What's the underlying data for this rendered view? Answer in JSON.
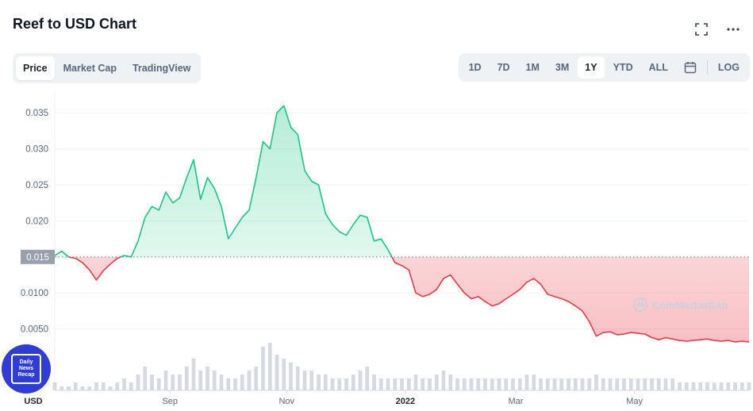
{
  "header": {
    "title": "Reef to USD Chart"
  },
  "tabs_left": [
    {
      "label": "Price",
      "active": true
    },
    {
      "label": "Market Cap",
      "active": false
    },
    {
      "label": "TradingView",
      "active": false
    }
  ],
  "tabs_right": [
    {
      "label": "1D",
      "active": false
    },
    {
      "label": "7D",
      "active": false
    },
    {
      "label": "1M",
      "active": false
    },
    {
      "label": "3M",
      "active": false
    },
    {
      "label": "1Y",
      "active": true
    },
    {
      "label": "YTD",
      "active": false
    },
    {
      "label": "ALL",
      "active": false
    }
  ],
  "log_label": "LOG",
  "icons": {
    "fullscreen": "fullscreen-icon",
    "more": "more-icon",
    "calendar": "calendar-icon"
  },
  "badge": {
    "line1": "Daily",
    "line2": "News",
    "line3": "Recap"
  },
  "watermark": "CoinMarketCap",
  "colors": {
    "up": "#16c784",
    "down": "#ea3943",
    "baseline_label_bg": "#9aa0ab"
  },
  "chart_data": {
    "type": "line",
    "currency_label": "USD",
    "baseline": 0.015,
    "baseline_label": "0.015",
    "ylim": [
      0.0,
      0.038
    ],
    "yticks": [
      {
        "value": 0.005,
        "label": "0.0050"
      },
      {
        "value": 0.01,
        "label": "0.0100"
      },
      {
        "value": 0.02,
        "label": "0.020"
      },
      {
        "value": 0.025,
        "label": "0.025"
      },
      {
        "value": 0.03,
        "label": "0.030"
      },
      {
        "value": 0.035,
        "label": "0.035"
      }
    ],
    "xlim": [
      0,
      100
    ],
    "xticks": [
      {
        "x": 16.6,
        "label": "Sep",
        "bold": false
      },
      {
        "x": 33.4,
        "label": "Nov",
        "bold": false
      },
      {
        "x": 50.5,
        "label": "2022",
        "bold": true
      },
      {
        "x": 66.4,
        "label": "Mar",
        "bold": false
      },
      {
        "x": 83.5,
        "label": "May",
        "bold": false
      }
    ],
    "x": [
      0,
      1,
      2,
      3,
      4,
      5,
      6,
      7,
      8,
      9,
      10,
      11,
      12,
      13,
      14,
      15,
      16,
      17,
      18,
      19,
      20,
      21,
      22,
      23,
      24,
      25,
      26,
      27,
      28,
      29,
      30,
      31,
      32,
      33,
      34,
      35,
      36,
      37,
      38,
      39,
      40,
      41,
      42,
      43,
      44,
      45,
      46,
      47,
      48,
      49,
      50,
      51,
      52,
      53,
      54,
      55,
      56,
      57,
      58,
      59,
      60,
      61,
      62,
      63,
      64,
      65,
      66,
      67,
      68,
      69,
      70,
      71,
      72,
      73,
      74,
      75,
      76,
      77,
      78,
      79,
      80,
      81,
      82,
      83,
      84,
      85,
      86,
      87,
      88,
      89,
      90,
      91,
      92,
      93,
      94,
      95,
      96,
      97,
      98,
      99,
      100
    ],
    "values": [
      0.0152,
      0.0158,
      0.015,
      0.0148,
      0.0142,
      0.0132,
      0.0118,
      0.0131,
      0.014,
      0.0148,
      0.0152,
      0.015,
      0.0172,
      0.0205,
      0.022,
      0.0215,
      0.024,
      0.0225,
      0.0232,
      0.026,
      0.0285,
      0.023,
      0.026,
      0.0245,
      0.022,
      0.0175,
      0.019,
      0.0205,
      0.0215,
      0.026,
      0.031,
      0.03,
      0.035,
      0.036,
      0.033,
      0.032,
      0.027,
      0.0255,
      0.025,
      0.021,
      0.0195,
      0.0185,
      0.018,
      0.0195,
      0.0208,
      0.0205,
      0.0172,
      0.0175,
      0.016,
      0.0142,
      0.0138,
      0.0132,
      0.01,
      0.0095,
      0.0098,
      0.0105,
      0.012,
      0.0125,
      0.0112,
      0.01,
      0.0092,
      0.0095,
      0.0088,
      0.0082,
      0.0085,
      0.0092,
      0.0098,
      0.0105,
      0.0115,
      0.012,
      0.0112,
      0.0098,
      0.0095,
      0.0092,
      0.0088,
      0.0082,
      0.0075,
      0.006,
      0.004,
      0.0045,
      0.0046,
      0.0042,
      0.0043,
      0.0045,
      0.0044,
      0.0043,
      0.0038,
      0.0035,
      0.0038,
      0.0036,
      0.0034,
      0.0033,
      0.0034,
      0.0035,
      0.0036,
      0.0034,
      0.0033,
      0.0034,
      0.0032,
      0.0033,
      0.0032
    ],
    "volume": [
      2,
      1,
      1,
      2,
      1,
      1,
      2,
      2,
      1,
      2,
      3,
      2,
      4,
      6,
      4,
      3,
      5,
      4,
      4,
      6,
      8,
      5,
      6,
      5,
      4,
      3,
      3,
      4,
      5,
      6,
      11,
      12,
      9,
      8,
      7,
      6,
      5,
      5,
      4,
      4,
      3,
      3,
      3,
      4,
      5,
      6,
      4,
      3,
      3,
      3,
      3,
      3,
      4,
      3,
      3,
      4,
      5,
      4,
      3,
      3,
      3,
      3,
      3,
      3,
      3,
      3,
      3,
      3,
      4,
      4,
      3,
      3,
      3,
      3,
      3,
      3,
      3,
      3,
      4,
      3,
      3,
      3,
      3,
      3,
      3,
      3,
      3,
      3,
      3,
      3,
      2,
      2,
      2,
      2,
      2,
      2,
      2,
      2,
      2,
      2,
      2
    ]
  }
}
